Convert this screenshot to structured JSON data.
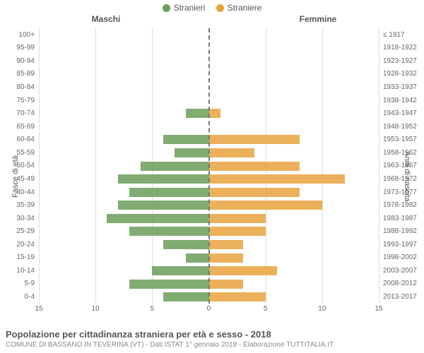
{
  "legend": {
    "male": {
      "label": "Stranieri",
      "color": "#6a9e58"
    },
    "female": {
      "label": "Straniere",
      "color": "#e8a33d"
    }
  },
  "column_headers": {
    "left": "Maschi",
    "right": "Femmine"
  },
  "y_axis_titles": {
    "left": "Fasce di età",
    "right": "Anni di nascita"
  },
  "x_axis": {
    "max": 15,
    "ticks": [
      15,
      10,
      5,
      0,
      5,
      10,
      15
    ]
  },
  "chart": {
    "type": "population-pyramid",
    "background_color": "#ffffff",
    "grid_color": "#dddddd",
    "center_line_color": "#777777",
    "bar_opacity": 0.85,
    "label_fontsize": 10,
    "axis_title_fontsize": 11,
    "legend_fontsize": 12,
    "header_fontsize": 12
  },
  "rows": [
    {
      "age": "100+",
      "birth": "≤ 1917",
      "m": 0,
      "f": 0
    },
    {
      "age": "95-99",
      "birth": "1918-1922",
      "m": 0,
      "f": 0
    },
    {
      "age": "90-94",
      "birth": "1923-1927",
      "m": 0,
      "f": 0
    },
    {
      "age": "85-89",
      "birth": "1928-1932",
      "m": 0,
      "f": 0
    },
    {
      "age": "80-84",
      "birth": "1933-1937",
      "m": 0,
      "f": 0
    },
    {
      "age": "75-79",
      "birth": "1938-1942",
      "m": 0,
      "f": 0
    },
    {
      "age": "70-74",
      "birth": "1943-1947",
      "m": 2,
      "f": 1
    },
    {
      "age": "65-69",
      "birth": "1948-1952",
      "m": 0,
      "f": 0
    },
    {
      "age": "60-64",
      "birth": "1953-1957",
      "m": 4,
      "f": 8
    },
    {
      "age": "55-59",
      "birth": "1958-1962",
      "m": 3,
      "f": 4
    },
    {
      "age": "50-54",
      "birth": "1963-1967",
      "m": 6,
      "f": 8
    },
    {
      "age": "45-49",
      "birth": "1968-1972",
      "m": 8,
      "f": 12
    },
    {
      "age": "40-44",
      "birth": "1973-1977",
      "m": 7,
      "f": 8
    },
    {
      "age": "35-39",
      "birth": "1978-1982",
      "m": 8,
      "f": 10
    },
    {
      "age": "30-34",
      "birth": "1983-1987",
      "m": 9,
      "f": 5
    },
    {
      "age": "25-29",
      "birth": "1988-1992",
      "m": 7,
      "f": 5
    },
    {
      "age": "20-24",
      "birth": "1993-1997",
      "m": 4,
      "f": 3
    },
    {
      "age": "15-19",
      "birth": "1998-2002",
      "m": 2,
      "f": 3
    },
    {
      "age": "10-14",
      "birth": "2003-2007",
      "m": 5,
      "f": 6
    },
    {
      "age": "5-9",
      "birth": "2008-2012",
      "m": 7,
      "f": 3
    },
    {
      "age": "0-4",
      "birth": "2013-2017",
      "m": 4,
      "f": 5
    }
  ],
  "title": {
    "main": "Popolazione per cittadinanza straniera per età e sesso - 2018",
    "sub": "COMUNE DI BASSANO IN TEVERINA (VT) - Dati ISTAT 1° gennaio 2018 - Elaborazione TUTTITALIA.IT",
    "main_color": "#555555",
    "sub_color": "#888888",
    "main_fontsize": 13,
    "sub_fontsize": 10
  }
}
